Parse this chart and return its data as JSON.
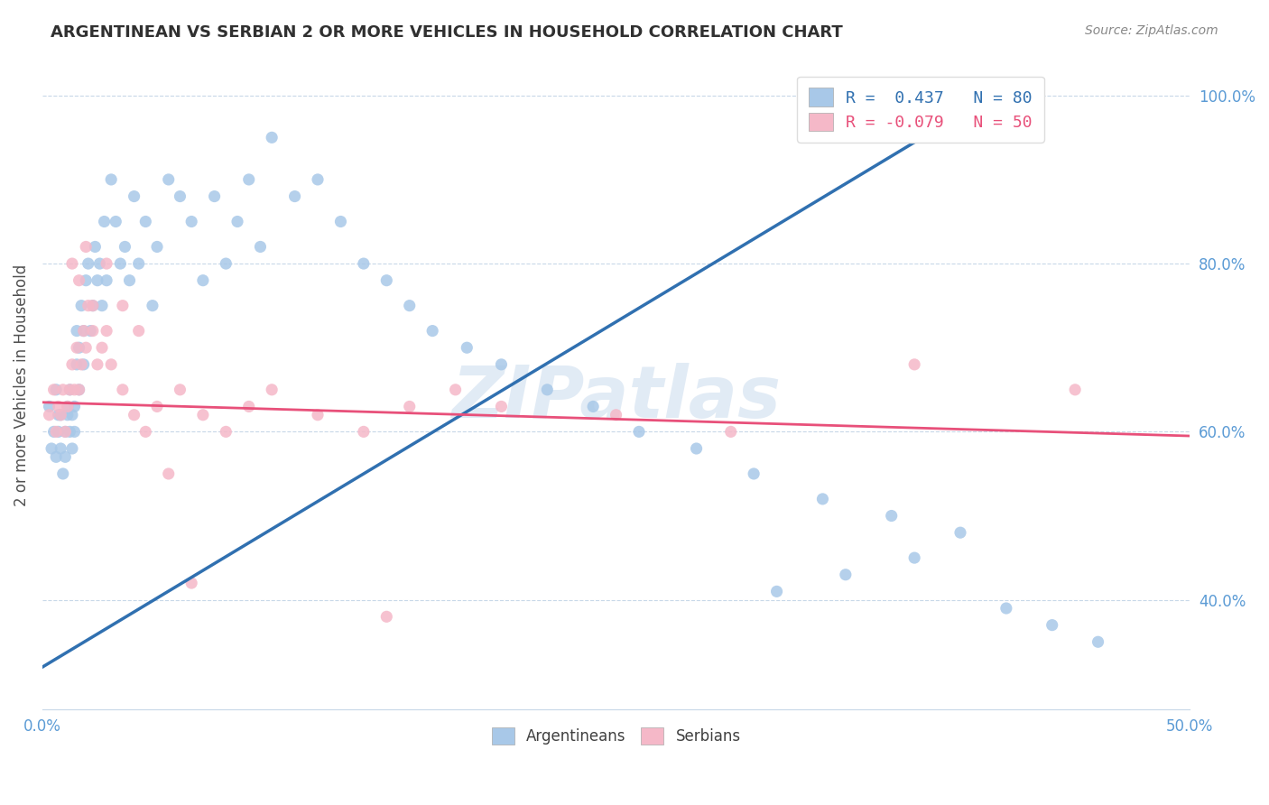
{
  "title": "ARGENTINEAN VS SERBIAN 2 OR MORE VEHICLES IN HOUSEHOLD CORRELATION CHART",
  "source": "Source: ZipAtlas.com",
  "ylabel": "2 or more Vehicles in Household",
  "legend_blue_r": "R =  0.437",
  "legend_blue_n": "N = 80",
  "legend_pink_r": "R = -0.079",
  "legend_pink_n": "N = 50",
  "watermark": "ZIPatlas",
  "blue_color": "#a8c8e8",
  "pink_color": "#f5b8c8",
  "blue_line_color": "#3070b0",
  "pink_line_color": "#e8507a",
  "xmin": 0.0,
  "xmax": 0.5,
  "ymin": 0.27,
  "ymax": 1.04,
  "blue_line_x0": 0.0,
  "blue_line_y0": 0.32,
  "blue_line_x1": 0.42,
  "blue_line_y1": 1.01,
  "pink_line_x0": 0.0,
  "pink_line_x1": 0.5,
  "pink_line_y0": 0.635,
  "pink_line_y1": 0.595,
  "argentinean_x": [
    0.003,
    0.004,
    0.005,
    0.006,
    0.006,
    0.007,
    0.007,
    0.008,
    0.008,
    0.009,
    0.01,
    0.01,
    0.011,
    0.011,
    0.012,
    0.012,
    0.013,
    0.013,
    0.014,
    0.014,
    0.015,
    0.015,
    0.016,
    0.016,
    0.017,
    0.018,
    0.018,
    0.019,
    0.02,
    0.021,
    0.022,
    0.023,
    0.024,
    0.025,
    0.026,
    0.027,
    0.028,
    0.03,
    0.032,
    0.034,
    0.036,
    0.038,
    0.04,
    0.042,
    0.045,
    0.048,
    0.05,
    0.055,
    0.06,
    0.065,
    0.07,
    0.075,
    0.08,
    0.085,
    0.09,
    0.095,
    0.1,
    0.11,
    0.12,
    0.13,
    0.14,
    0.15,
    0.16,
    0.17,
    0.185,
    0.2,
    0.22,
    0.24,
    0.26,
    0.285,
    0.31,
    0.34,
    0.37,
    0.4,
    0.38,
    0.35,
    0.32,
    0.42,
    0.44,
    0.46
  ],
  "argentinean_y": [
    0.63,
    0.58,
    0.6,
    0.57,
    0.65,
    0.6,
    0.62,
    0.58,
    0.62,
    0.55,
    0.57,
    0.6,
    0.62,
    0.63,
    0.6,
    0.65,
    0.58,
    0.62,
    0.63,
    0.6,
    0.72,
    0.68,
    0.65,
    0.7,
    0.75,
    0.68,
    0.72,
    0.78,
    0.8,
    0.72,
    0.75,
    0.82,
    0.78,
    0.8,
    0.75,
    0.85,
    0.78,
    0.9,
    0.85,
    0.8,
    0.82,
    0.78,
    0.88,
    0.8,
    0.85,
    0.75,
    0.82,
    0.9,
    0.88,
    0.85,
    0.78,
    0.88,
    0.8,
    0.85,
    0.9,
    0.82,
    0.95,
    0.88,
    0.9,
    0.85,
    0.8,
    0.78,
    0.75,
    0.72,
    0.7,
    0.68,
    0.65,
    0.63,
    0.6,
    0.58,
    0.55,
    0.52,
    0.5,
    0.48,
    0.45,
    0.43,
    0.41,
    0.39,
    0.37,
    0.35
  ],
  "serbian_x": [
    0.003,
    0.005,
    0.006,
    0.007,
    0.008,
    0.009,
    0.01,
    0.011,
    0.012,
    0.013,
    0.014,
    0.015,
    0.016,
    0.017,
    0.018,
    0.019,
    0.02,
    0.022,
    0.024,
    0.026,
    0.028,
    0.03,
    0.035,
    0.04,
    0.045,
    0.05,
    0.06,
    0.07,
    0.08,
    0.09,
    0.1,
    0.12,
    0.14,
    0.16,
    0.18,
    0.2,
    0.25,
    0.3,
    0.38,
    0.45,
    0.013,
    0.016,
    0.019,
    0.022,
    0.028,
    0.035,
    0.042,
    0.055,
    0.065,
    0.15
  ],
  "serbian_y": [
    0.62,
    0.65,
    0.6,
    0.63,
    0.62,
    0.65,
    0.6,
    0.63,
    0.65,
    0.68,
    0.65,
    0.7,
    0.65,
    0.68,
    0.72,
    0.7,
    0.75,
    0.72,
    0.68,
    0.7,
    0.72,
    0.68,
    0.65,
    0.62,
    0.6,
    0.63,
    0.65,
    0.62,
    0.6,
    0.63,
    0.65,
    0.62,
    0.6,
    0.63,
    0.65,
    0.63,
    0.62,
    0.6,
    0.68,
    0.65,
    0.8,
    0.78,
    0.82,
    0.75,
    0.8,
    0.75,
    0.72,
    0.55,
    0.42,
    0.38
  ]
}
